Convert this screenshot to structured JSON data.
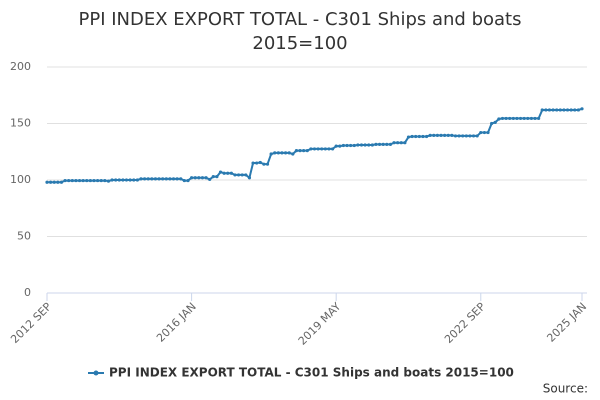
{
  "chart_data": {
    "type": "line",
    "title": "PPI INDEX EXPORT TOTAL - C301 Ships and boats 2015=100",
    "source": "Source:",
    "categories": [
      "2012 SEP",
      null,
      null,
      null,
      null,
      null,
      null,
      null,
      null,
      null,
      null,
      null,
      null,
      null,
      null,
      null,
      null,
      null,
      null,
      null,
      null,
      null,
      null,
      null,
      null,
      null,
      null,
      null,
      null,
      null,
      null,
      null,
      null,
      null,
      null,
      null,
      null,
      null,
      null,
      null,
      "2016 JAN",
      null,
      null,
      null,
      null,
      null,
      null,
      null,
      null,
      null,
      null,
      null,
      null,
      null,
      null,
      null,
      null,
      null,
      null,
      null,
      null,
      null,
      null,
      null,
      null,
      null,
      null,
      null,
      null,
      null,
      null,
      null,
      null,
      null,
      null,
      null,
      null,
      null,
      null,
      null,
      "2019 MAY",
      null,
      null,
      null,
      null,
      null,
      null,
      null,
      null,
      null,
      null,
      null,
      null,
      null,
      null,
      null,
      null,
      null,
      null,
      null,
      null,
      null,
      null,
      null,
      null,
      null,
      null,
      null,
      null,
      null,
      null,
      null,
      null,
      null,
      null,
      null,
      null,
      null,
      null,
      null,
      "2022 SEP",
      null,
      null,
      null,
      null,
      null,
      null,
      null,
      null,
      null,
      null,
      null,
      null,
      null,
      null,
      null,
      null,
      null,
      null,
      null,
      null,
      null,
      null,
      null,
      null,
      null,
      null,
      null,
      "2025 JAN"
    ],
    "series": [
      {
        "name": "PPI INDEX EXPORT TOTAL - C301 Ships and boats 2015=100",
        "color": "#2a7ab0",
        "values": [
          98,
          98,
          98,
          98,
          98,
          99.5,
          99.5,
          99.5,
          99.5,
          99.5,
          99.5,
          99.5,
          99.5,
          99.5,
          99.5,
          99.5,
          99.5,
          99,
          100,
          100,
          100,
          100,
          100,
          100,
          100,
          100,
          101,
          101,
          101,
          101,
          101,
          101,
          101,
          101,
          101,
          101,
          101,
          101,
          99.5,
          99.5,
          102,
          102,
          102,
          102,
          102,
          100.5,
          103,
          103,
          107,
          106,
          106,
          106,
          104.5,
          104.5,
          104.5,
          104.5,
          102,
          115,
          115,
          115.5,
          114,
          114,
          123,
          124,
          124,
          124,
          124,
          124,
          123,
          126,
          126,
          126,
          126,
          127.5,
          127.5,
          127.5,
          127.5,
          127.5,
          127.5,
          127.5,
          130,
          130,
          130.5,
          130.5,
          130.5,
          130.5,
          131,
          131,
          131,
          131,
          131,
          131.5,
          131.5,
          131.5,
          131.5,
          131.5,
          133,
          133,
          133,
          133,
          138,
          138.5,
          138.5,
          138.5,
          138.5,
          138.5,
          139.5,
          139.5,
          139.5,
          139.5,
          139.5,
          139.5,
          139.5,
          139,
          139,
          139,
          139,
          139,
          139,
          139,
          142,
          142,
          142,
          150,
          151,
          154,
          154.5,
          154.5,
          154.5,
          154.5,
          154.5,
          154.5,
          154.5,
          154.5,
          154.5,
          154.5,
          154.5,
          162,
          162,
          162,
          162,
          162,
          162,
          162,
          162,
          162,
          162,
          162,
          163
        ]
      }
    ],
    "ylim": [
      0,
      200
    ],
    "yticks": [
      0,
      50,
      100,
      150,
      200
    ],
    "grid": true
  }
}
